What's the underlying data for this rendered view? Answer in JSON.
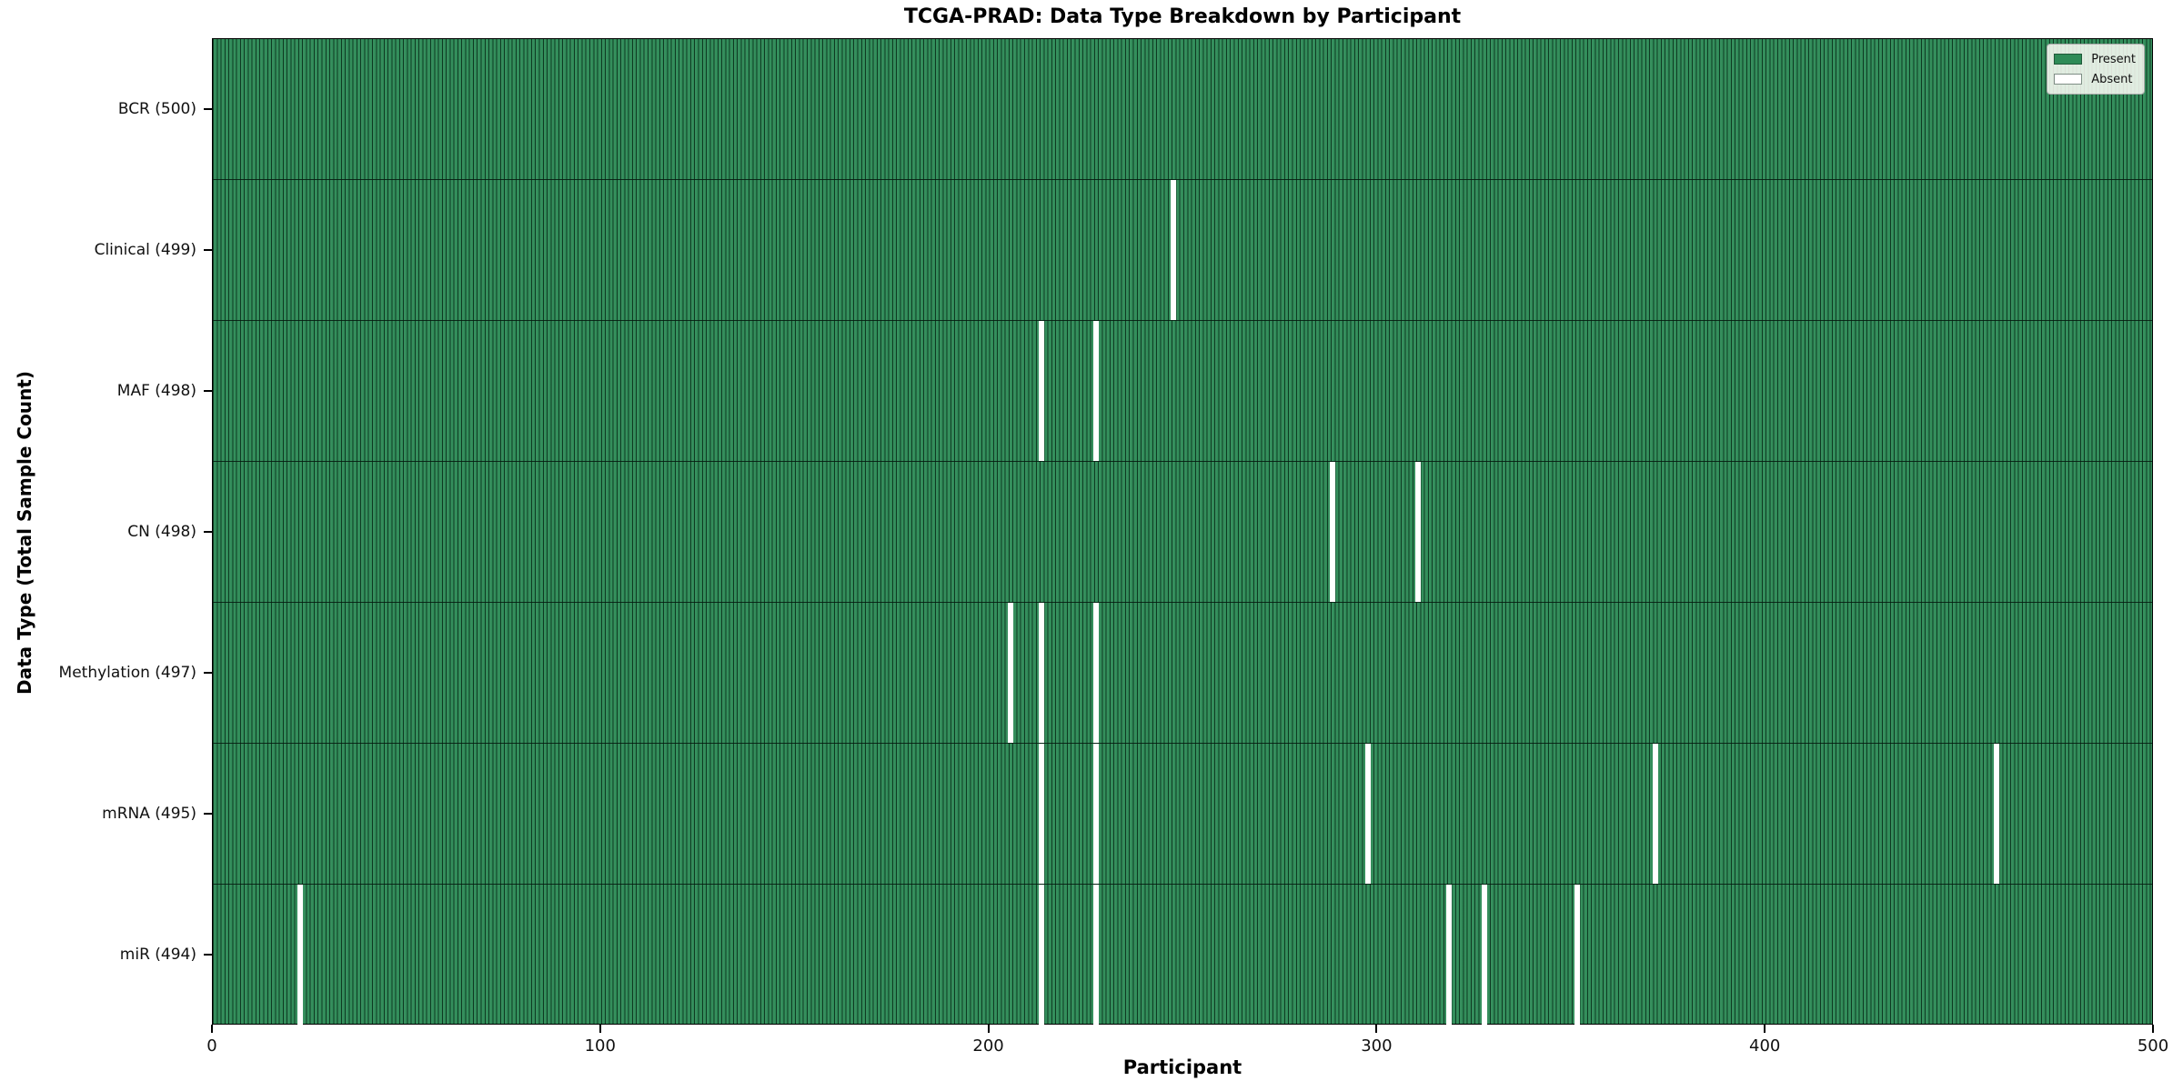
{
  "title": "TCGA-PRAD: Data Type Breakdown by Participant",
  "xlabel": "Participant",
  "ylabel": "Data Type (Total Sample Count)",
  "legend": {
    "present_label": "Present",
    "absent_label": "Absent"
  },
  "colors": {
    "present": "#2e8b57",
    "absent": "#ffffff",
    "cell_edge": "#0c2c19",
    "plot_border": "#000000",
    "legend_bg": "#fdfdf7",
    "legend_border": "#a9a9a9"
  },
  "chart_data": {
    "type": "heatmap",
    "title": "TCGA-PRAD: Data Type Breakdown by Participant",
    "xlabel": "Participant",
    "ylabel": "Data Type (Total Sample Count)",
    "x_range": [
      0,
      500
    ],
    "x_ticks": [
      0,
      100,
      200,
      300,
      400,
      500
    ],
    "n_participants": 500,
    "grid": false,
    "legend_entries": [
      "Present",
      "Absent"
    ],
    "legend_position": "upper right",
    "rows": [
      {
        "label": "BCR (500)",
        "data_type": "BCR",
        "present_count": 500,
        "absent_participants": []
      },
      {
        "label": "Clinical (499)",
        "data_type": "Clinical",
        "present_count": 499,
        "absent_participants": [
          247
        ]
      },
      {
        "label": "MAF (498)",
        "data_type": "MAF",
        "present_count": 498,
        "absent_participants": [
          213,
          227
        ]
      },
      {
        "label": "CN (498)",
        "data_type": "CN",
        "present_count": 498,
        "absent_participants": [
          288,
          310
        ]
      },
      {
        "label": "Methylation (497)",
        "data_type": "Methylation",
        "present_count": 497,
        "absent_participants": [
          205,
          213,
          227
        ]
      },
      {
        "label": "mRNA (495)",
        "data_type": "mRNA",
        "present_count": 495,
        "absent_participants": [
          213,
          227,
          297,
          371,
          459
        ]
      },
      {
        "label": "miR (494)",
        "data_type": "miR",
        "present_count": 494,
        "absent_participants": [
          22,
          213,
          227,
          318,
          327,
          351
        ]
      }
    ]
  }
}
